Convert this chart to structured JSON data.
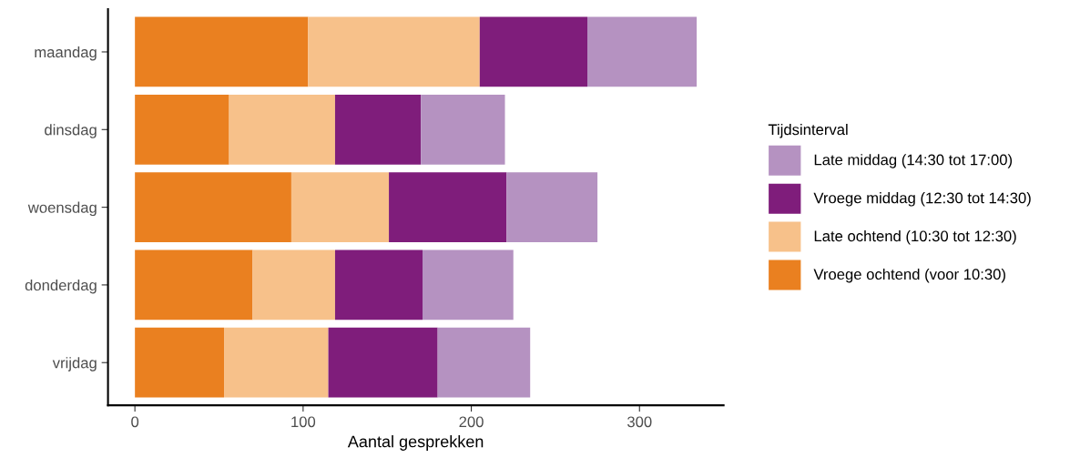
{
  "chart_data": {
    "type": "bar",
    "orientation": "horizontal",
    "stacked": true,
    "categories": [
      "maandag",
      "dinsdag",
      "woensdag",
      "donderdag",
      "vrijdag"
    ],
    "xlabel": "Aantal gesprekken",
    "legend_title": "Tijdsinterval",
    "legend": "right",
    "xlim": [
      -16,
      350
    ],
    "xticks": [
      0,
      100,
      200,
      300
    ],
    "grid": false,
    "series": [
      {
        "name": "Vroege ochtend (voor 10:30)",
        "color": "#ea8020",
        "values": [
          103,
          56,
          93,
          70,
          53
        ]
      },
      {
        "name": "Late ochtend (10:30 tot 12:30)",
        "color": "#f7c18a",
        "values": [
          102,
          63,
          58,
          49,
          62
        ]
      },
      {
        "name": "Vroege middag (12:30 tot 14:30)",
        "color": "#7f1d7b",
        "values": [
          64,
          51,
          70,
          52,
          65
        ]
      },
      {
        "name": "Late middag (14:30 tot 17:00)",
        "color": "#b592c1",
        "values": [
          65,
          50,
          54,
          54,
          55
        ]
      }
    ]
  }
}
